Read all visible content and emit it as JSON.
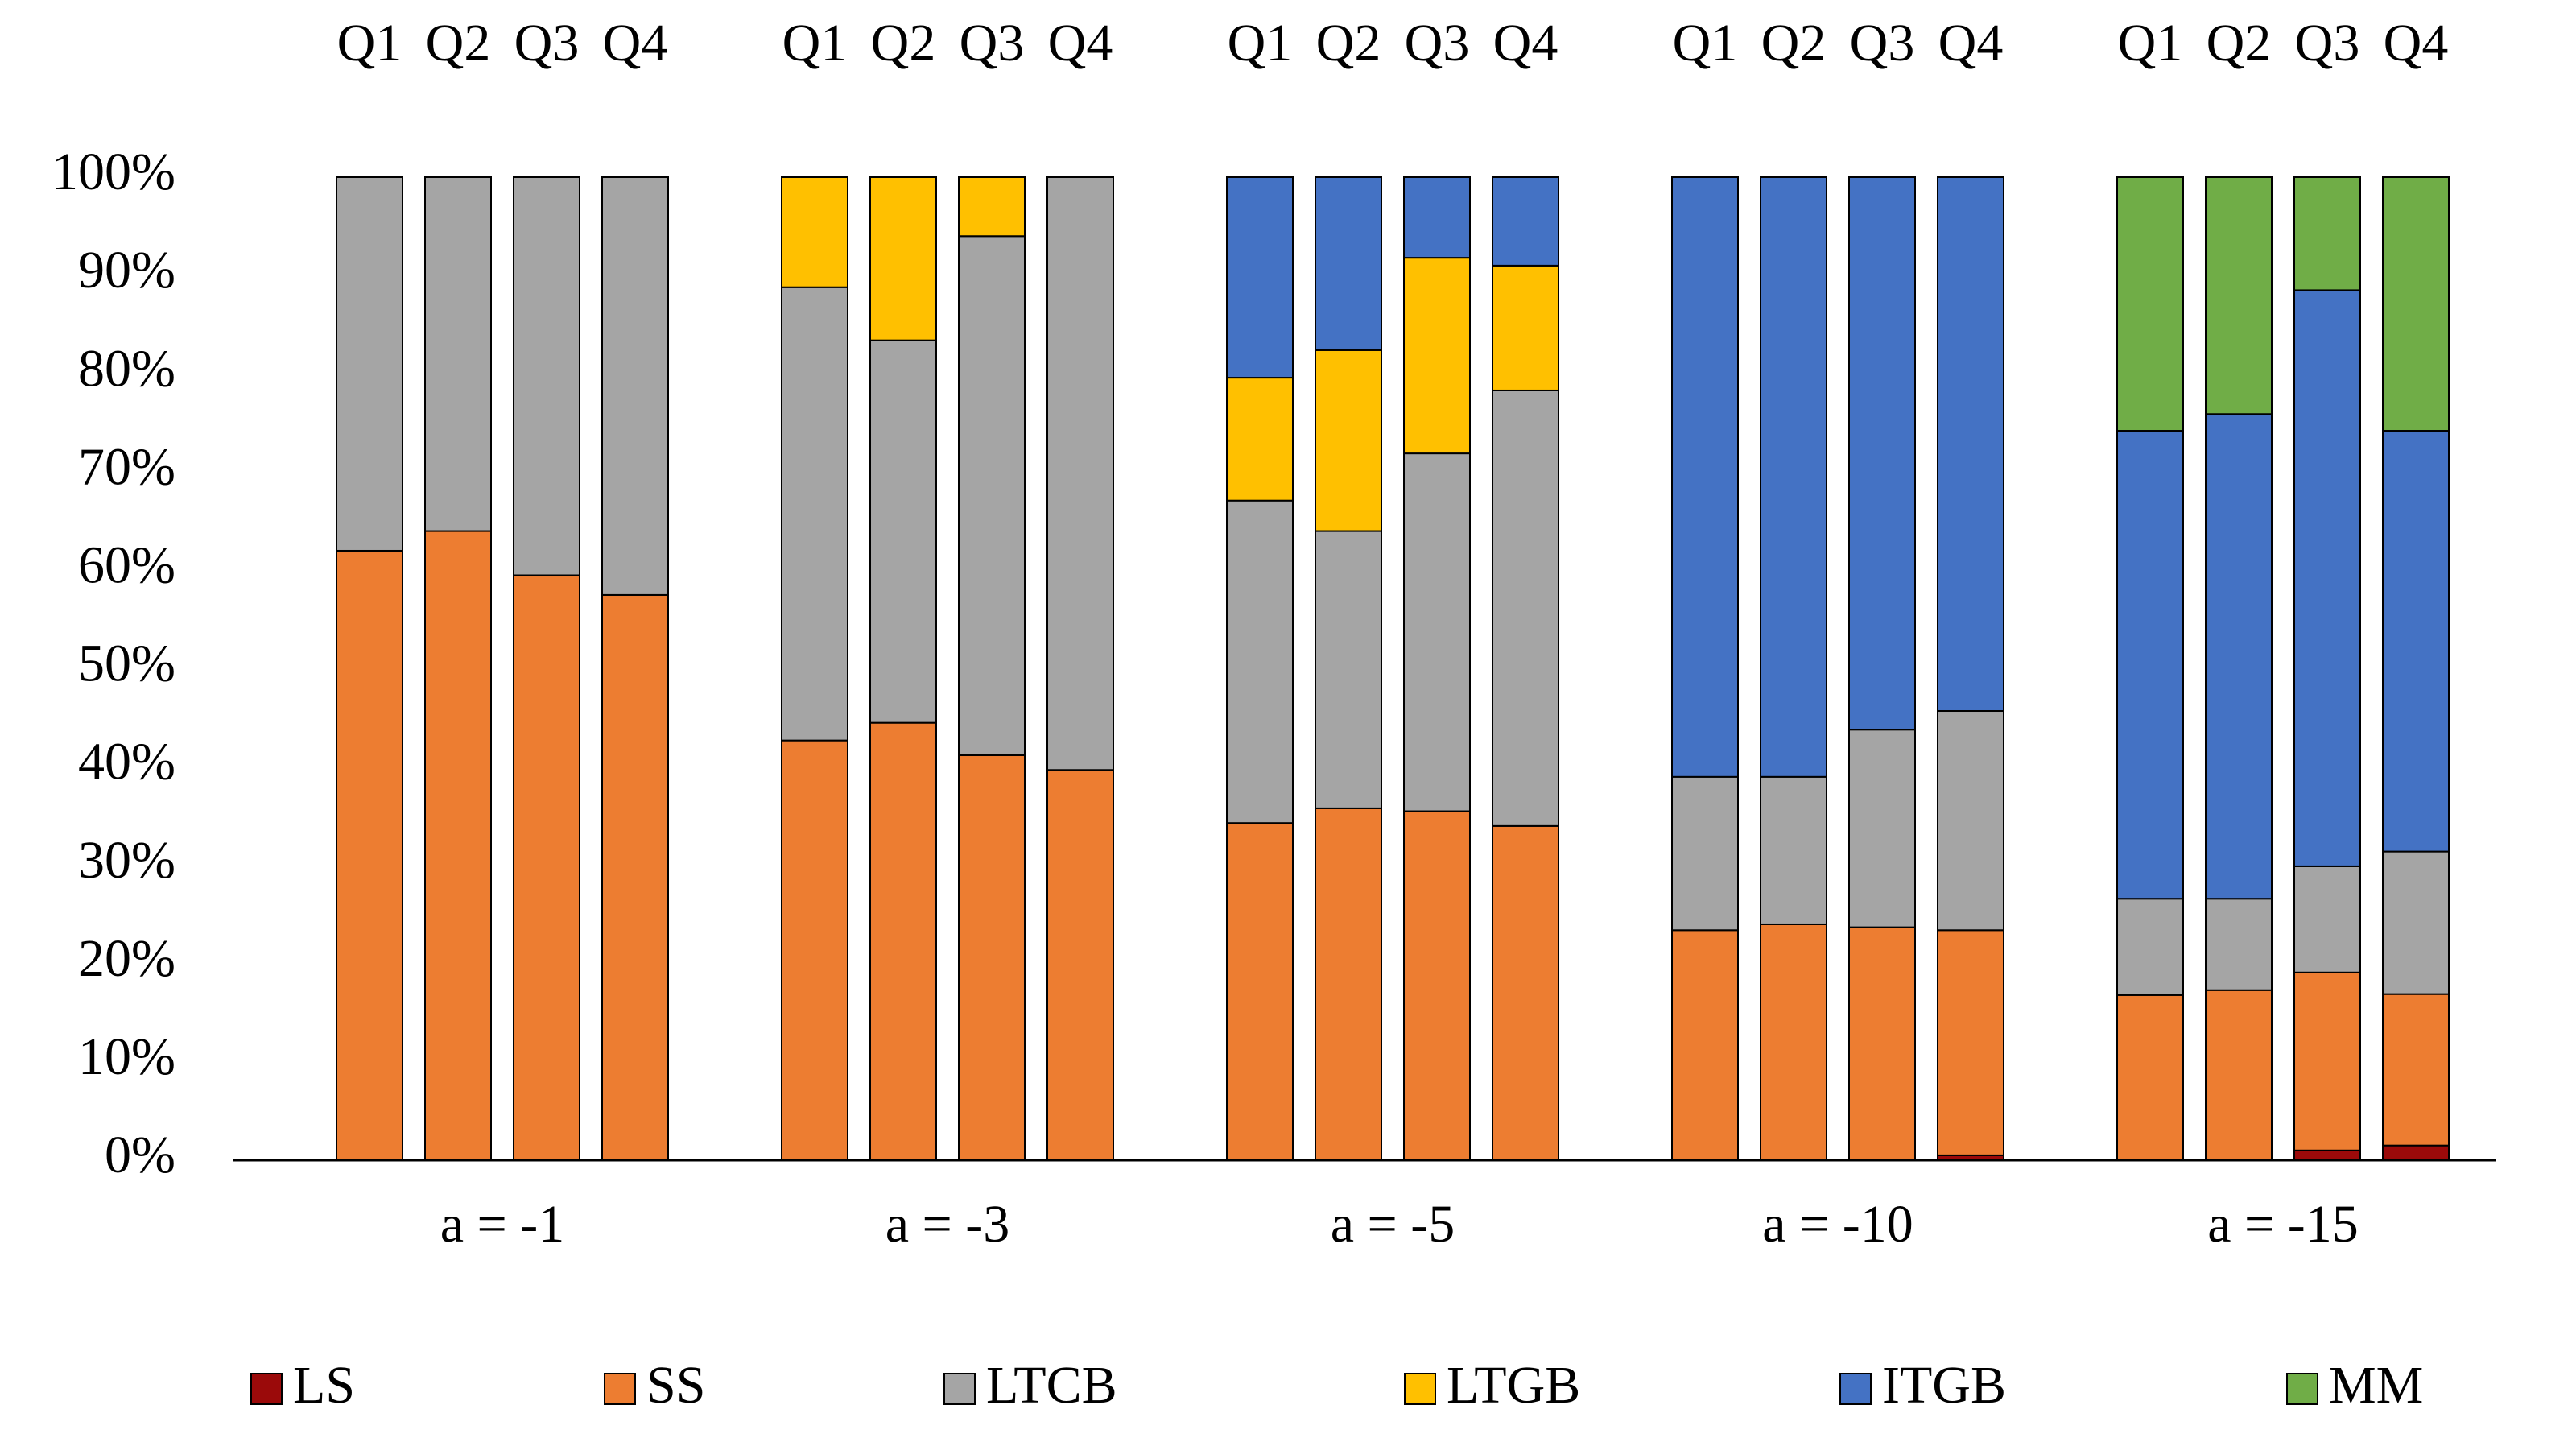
{
  "chart_data": {
    "type": "stacked_bar",
    "categories": [
      "Q1",
      "Q2",
      "Q3",
      "Q4",
      "Q1",
      "Q2",
      "Q3",
      "Q4",
      "Q1",
      "Q2",
      "Q3",
      "Q4",
      "Q1",
      "Q2",
      "Q3",
      "Q4",
      "Q1",
      "Q2",
      "Q3",
      "Q4"
    ],
    "groups": [
      "a = -1",
      "a = -3",
      "a = -5",
      "a = -10",
      "a = -15"
    ],
    "series": [
      {
        "name": "LS",
        "color": "#9b0a0a",
        "values": [
          0,
          0,
          0,
          0,
          0,
          0,
          0,
          0,
          0,
          0,
          0,
          0,
          0,
          0,
          0,
          0.5,
          0,
          0,
          1.0,
          1.5
        ]
      },
      {
        "name": "SS",
        "color": "#ed7d31",
        "values": [
          62,
          64,
          59.5,
          57.5,
          42.7,
          44.5,
          41.2,
          39.7,
          34.3,
          35.8,
          35.5,
          34,
          23.4,
          24,
          23.7,
          22.9,
          16.8,
          17.3,
          18.1,
          15.4
        ]
      },
      {
        "name": "LTCB",
        "color": "#a5a5a5",
        "values": [
          38,
          36,
          40.5,
          42.5,
          46.1,
          38.9,
          52.8,
          60.3,
          32.8,
          28.2,
          36.4,
          44.3,
          15.6,
          15,
          20.1,
          22.3,
          9.8,
          9.3,
          10.8,
          14.5
        ]
      },
      {
        "name": "LTGB",
        "color": "#ffc000",
        "values": [
          0,
          0,
          0,
          0,
          11.2,
          16.6,
          6,
          0,
          12.5,
          18.4,
          19.9,
          12.7,
          0,
          0,
          0,
          0,
          0,
          0,
          0,
          0
        ]
      },
      {
        "name": "ITGB",
        "color": "#4472c4",
        "values": [
          0,
          0,
          0,
          0,
          0,
          0,
          0,
          0,
          20.4,
          17.6,
          8.2,
          9,
          61,
          61,
          56.2,
          54.3,
          47.6,
          49.3,
          58.6,
          42.8
        ]
      },
      {
        "name": "MM",
        "color": "#70ad47",
        "values": [
          0,
          0,
          0,
          0,
          0,
          0,
          0,
          0,
          0,
          0,
          0,
          0,
          0,
          0,
          0,
          0,
          25.8,
          24.1,
          11.5,
          25.8
        ]
      }
    ],
    "ylim": [
      0,
      100
    ],
    "yticks": [
      {
        "value": 0,
        "label": "0%"
      },
      {
        "value": 10,
        "label": "10%"
      },
      {
        "value": 20,
        "label": "20%"
      },
      {
        "value": 30,
        "label": "30%"
      },
      {
        "value": 40,
        "label": "40%"
      },
      {
        "value": 50,
        "label": "50%"
      },
      {
        "value": 60,
        "label": "60%"
      },
      {
        "value": 70,
        "label": "70%"
      },
      {
        "value": 80,
        "label": "80%"
      },
      {
        "value": 90,
        "label": "90%"
      },
      {
        "value": 100,
        "label": "100%"
      }
    ],
    "legend": "bottom"
  }
}
